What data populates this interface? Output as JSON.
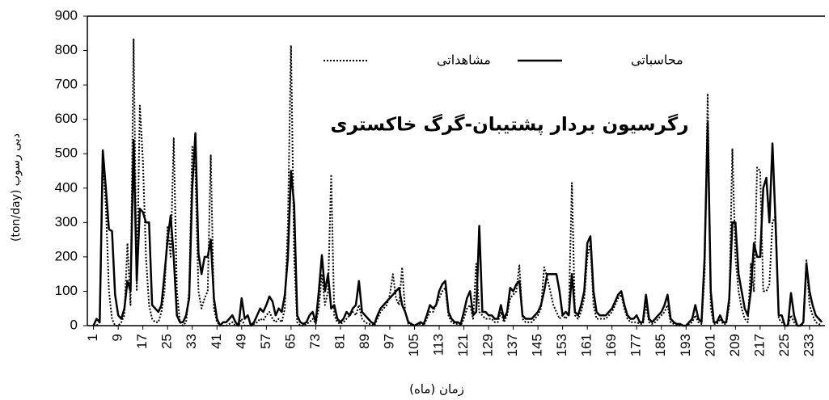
{
  "chart_data": {
    "type": "line",
    "annotation": "رگرسیون بردار پشتیبان-گرگ خاکستری",
    "x_label": "زمان (ماه)",
    "y_label": "دبی رسوب (ton/day)",
    "x": [
      1,
      2,
      3,
      4,
      5,
      6,
      7,
      8,
      9,
      10,
      11,
      12,
      13,
      14,
      15,
      16,
      17,
      18,
      19,
      20,
      21,
      22,
      23,
      24,
      25,
      26,
      27,
      28,
      29,
      30,
      31,
      32,
      33,
      34,
      35,
      36,
      37,
      38,
      39,
      40,
      41,
      42,
      43,
      44,
      45,
      46,
      47,
      48,
      49,
      50,
      51,
      52,
      53,
      54,
      55,
      56,
      57,
      58,
      59,
      60,
      61,
      62,
      63,
      64,
      65,
      66,
      67,
      68,
      69,
      70,
      71,
      72,
      73,
      74,
      75,
      76,
      77,
      78,
      79,
      80,
      81,
      82,
      83,
      84,
      85,
      86,
      87,
      88,
      89,
      90,
      91,
      92,
      93,
      94,
      95,
      96,
      97,
      98,
      99,
      100,
      101,
      102,
      103,
      104,
      105,
      106,
      107,
      108,
      109,
      110,
      111,
      112,
      113,
      114,
      115,
      116,
      117,
      118,
      119,
      120,
      121,
      122,
      123,
      124,
      125,
      126,
      127,
      128,
      129,
      130,
      131,
      132,
      133,
      134,
      135,
      136,
      137,
      138,
      139,
      140,
      141,
      142,
      143,
      144,
      145,
      146,
      147,
      148,
      149,
      150,
      151,
      152,
      153,
      154,
      155,
      156,
      157,
      158,
      159,
      160,
      161,
      162,
      163,
      164,
      165,
      166,
      167,
      168,
      169,
      170,
      171,
      172,
      173,
      174,
      175,
      176,
      177,
      178,
      179,
      180,
      181,
      182,
      183,
      184,
      185,
      186,
      187,
      188,
      189,
      190,
      191,
      192,
      193,
      194,
      195,
      196,
      197,
      198,
      199,
      200,
      201,
      202,
      203,
      204,
      205,
      206,
      207,
      208,
      209,
      210,
      211,
      212,
      213,
      214,
      215,
      216,
      217,
      218,
      219,
      220,
      221,
      222,
      223,
      224,
      225,
      226,
      227,
      228,
      229,
      230,
      231,
      232,
      233,
      234,
      235,
      236,
      237
    ],
    "series": [
      {
        "name": "محاسباتی",
        "color": "#000000",
        "line_style": "solid",
        "values": [
          0,
          20,
          10,
          510,
          400,
          280,
          275,
          90,
          30,
          20,
          50,
          130,
          100,
          540,
          130,
          340,
          330,
          300,
          300,
          60,
          50,
          40,
          60,
          150,
          250,
          320,
          200,
          30,
          10,
          10,
          30,
          80,
          400,
          560,
          210,
          150,
          200,
          200,
          250,
          80,
          20,
          0,
          10,
          10,
          20,
          30,
          10,
          0,
          80,
          20,
          30,
          0,
          10,
          30,
          50,
          40,
          60,
          85,
          70,
          30,
          50,
          40,
          90,
          200,
          450,
          350,
          30,
          10,
          5,
          10,
          30,
          40,
          10,
          100,
          205,
          100,
          150,
          50,
          60,
          20,
          10,
          20,
          40,
          30,
          50,
          60,
          130,
          40,
          30,
          20,
          10,
          5,
          30,
          50,
          60,
          70,
          80,
          90,
          100,
          110,
          60,
          40,
          10,
          5,
          0,
          5,
          10,
          5,
          30,
          60,
          50,
          60,
          100,
          120,
          130,
          40,
          20,
          10,
          10,
          5,
          40,
          80,
          100,
          30,
          40,
          290,
          40,
          40,
          30,
          30,
          20,
          20,
          60,
          20,
          40,
          110,
          100,
          120,
          130,
          30,
          20,
          20,
          20,
          30,
          40,
          60,
          100,
          150,
          150,
          150,
          150,
          100,
          30,
          40,
          30,
          150,
          40,
          30,
          60,
          100,
          240,
          260,
          100,
          40,
          30,
          30,
          30,
          40,
          50,
          70,
          90,
          100,
          60,
          30,
          20,
          20,
          30,
          10,
          10,
          90,
          20,
          10,
          20,
          30,
          40,
          60,
          90,
          20,
          10,
          5,
          5,
          0,
          0,
          10,
          20,
          60,
          20,
          10,
          200,
          590,
          100,
          10,
          10,
          30,
          10,
          10,
          80,
          300,
          300,
          150,
          100,
          50,
          30,
          100,
          240,
          200,
          200,
          400,
          430,
          300,
          530,
          300,
          30,
          30,
          0,
          0,
          95,
          30,
          0,
          0,
          10,
          180,
          100,
          60,
          30,
          20,
          10
        ]
      },
      {
        "name": "مشاهداتی",
        "color": "#000000",
        "line_style": "dotted",
        "values": [
          0,
          0,
          10,
          480,
          350,
          100,
          20,
          0,
          0,
          10,
          30,
          240,
          60,
          835,
          100,
          640,
          480,
          200,
          60,
          20,
          10,
          10,
          40,
          100,
          290,
          200,
          545,
          100,
          10,
          0,
          10,
          100,
          520,
          450,
          100,
          50,
          80,
          100,
          495,
          50,
          10,
          0,
          0,
          0,
          5,
          10,
          0,
          0,
          20,
          0,
          0,
          0,
          5,
          10,
          20,
          15,
          30,
          40,
          20,
          10,
          20,
          10,
          50,
          300,
          815,
          200,
          10,
          0,
          0,
          5,
          10,
          20,
          5,
          50,
          150,
          60,
          100,
          440,
          30,
          10,
          5,
          10,
          20,
          30,
          40,
          30,
          60,
          20,
          10,
          5,
          5,
          0,
          20,
          40,
          50,
          60,
          90,
          150,
          80,
          60,
          170,
          40,
          5,
          0,
          0,
          5,
          5,
          0,
          20,
          40,
          40,
          60,
          80,
          100,
          110,
          30,
          10,
          5,
          5,
          0,
          20,
          50,
          60,
          20,
          180,
          40,
          30,
          20,
          20,
          20,
          10,
          10,
          40,
          10,
          30,
          80,
          90,
          100,
          175,
          20,
          10,
          10,
          10,
          20,
          30,
          50,
          170,
          140,
          100,
          60,
          40,
          20,
          30,
          20,
          40,
          415,
          30,
          20,
          40,
          80,
          200,
          240,
          60,
          20,
          20,
          20,
          20,
          30,
          40,
          60,
          80,
          90,
          50,
          20,
          10,
          10,
          10,
          5,
          5,
          60,
          10,
          5,
          10,
          20,
          30,
          40,
          60,
          10,
          5,
          0,
          0,
          0,
          0,
          5,
          10,
          30,
          10,
          5,
          150,
          675,
          50,
          5,
          5,
          20,
          5,
          5,
          60,
          515,
          200,
          100,
          50,
          20,
          10,
          180,
          100,
          460,
          450,
          100,
          100,
          120,
          300,
          320,
          20,
          10,
          0,
          0,
          30,
          10,
          0,
          0,
          5,
          190,
          60,
          30,
          10,
          5,
          0
        ]
      }
    ],
    "xlim": [
      -1,
      238
    ],
    "xticks": [
      1,
      9,
      17,
      25,
      33,
      41,
      49,
      57,
      65,
      73,
      81,
      89,
      97,
      105,
      113,
      121,
      129,
      137,
      145,
      153,
      161,
      169,
      177,
      185,
      193,
      201,
      209,
      217,
      225,
      233
    ],
    "ylim": [
      0,
      900
    ],
    "yticks": [
      0,
      100,
      200,
      300,
      400,
      500,
      600,
      700,
      800,
      900
    ],
    "grid": false
  }
}
